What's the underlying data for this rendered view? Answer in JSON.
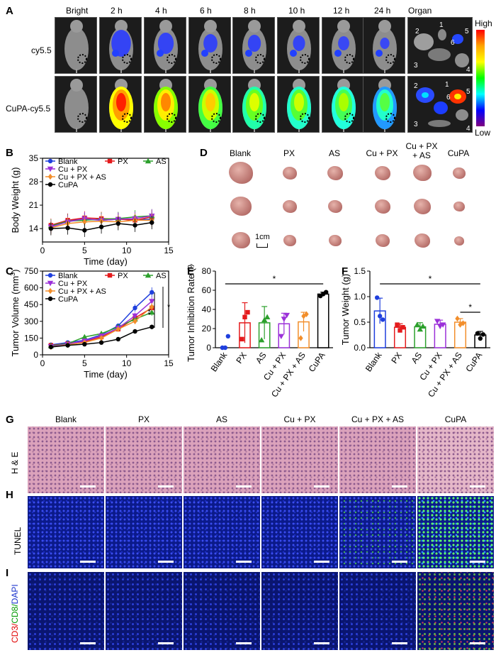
{
  "panel_labels": {
    "A": "A",
    "B": "B",
    "C": "C",
    "D": "D",
    "E": "E",
    "F": "F",
    "G": "G",
    "H": "H",
    "I": "I"
  },
  "panelA": {
    "time_labels": [
      "Bright",
      "2 h",
      "4 h",
      "6 h",
      "8 h",
      "10 h",
      "12 h",
      "24 h"
    ],
    "organ_label": "Organ",
    "row_labels": [
      "cy5.5",
      "CuPA-cy5.5"
    ],
    "colorbar": {
      "high": "High",
      "low": "Low",
      "colors": [
        "#ff0000",
        "#ffa500",
        "#ffff00",
        "#00ff00",
        "#00ffff",
        "#0000ff",
        "#800080"
      ]
    },
    "organ_numbers": [
      "1",
      "2",
      "3",
      "4",
      "5",
      "6"
    ]
  },
  "panelD": {
    "groups": [
      "Blank",
      "PX",
      "AS",
      "Cu + PX",
      "Cu + PX\n+ AS",
      "CuPA"
    ],
    "scale_label": "1cm"
  },
  "panelG": {
    "groups": [
      "Blank",
      "PX",
      "AS",
      "Cu + PX",
      "Cu + PX + AS",
      "CuPA"
    ],
    "row_labels": {
      "he": "H & E",
      "tunel": "TUNEL",
      "cd_red": "CD3/",
      "cd_green": "CD8/",
      "cd_blue": "DAPI"
    }
  },
  "chart_data": [
    {
      "id": "B",
      "type": "line",
      "title": "",
      "xlabel": "Time (day)",
      "ylabel": "Body Weight (g)",
      "xlim": [
        0,
        15
      ],
      "ylim": [
        10,
        35
      ],
      "xticks": [
        0,
        5,
        10,
        15
      ],
      "yticks": [
        14,
        21,
        28,
        35
      ],
      "x": [
        1,
        3,
        5,
        7,
        9,
        11,
        13
      ],
      "series": [
        {
          "name": "Blank",
          "color": "#1f3fdd",
          "marker": "circle",
          "values": [
            14.5,
            16.5,
            16.8,
            16.5,
            16.8,
            16.6,
            16.8
          ]
        },
        {
          "name": "PX",
          "color": "#e41a1c",
          "marker": "square",
          "values": [
            15.0,
            16.5,
            17.2,
            17.0,
            16.8,
            16.5,
            17.5
          ]
        },
        {
          "name": "AS",
          "color": "#2ca02c",
          "marker": "triangle",
          "values": [
            14.8,
            16.2,
            16.5,
            16.8,
            17.0,
            17.5,
            17.8
          ]
        },
        {
          "name": "Cu + PX",
          "color": "#9b30d9",
          "marker": "triangle-down",
          "values": [
            14.5,
            16.0,
            17.0,
            16.5,
            16.8,
            17.0,
            17.8
          ]
        },
        {
          "name": "Cu + PX + AS",
          "color": "#f28e2b",
          "marker": "diamond",
          "values": [
            14.2,
            15.5,
            16.0,
            16.2,
            16.0,
            16.5,
            16.5
          ]
        },
        {
          "name": "CuPA",
          "color": "#000000",
          "marker": "circle",
          "values": [
            14.0,
            14.2,
            13.5,
            14.5,
            15.5,
            15.0,
            15.8
          ]
        }
      ]
    },
    {
      "id": "C",
      "type": "line",
      "title": "",
      "xlabel": "Time (day)",
      "ylabel": "Tumor Volume (mm",
      "ylabel_sup": "3",
      "ylabel_end": ")",
      "xlim": [
        0,
        15
      ],
      "ylim": [
        0,
        750
      ],
      "xticks": [
        0,
        5,
        10,
        15
      ],
      "yticks": [
        0,
        150,
        300,
        450,
        600,
        750
      ],
      "x": [
        1,
        3,
        5,
        7,
        9,
        11,
        13
      ],
      "series": [
        {
          "name": "Blank",
          "color": "#1f3fdd",
          "marker": "circle",
          "values": [
            90,
            110,
            130,
            180,
            260,
            420,
            560
          ]
        },
        {
          "name": "PX",
          "color": "#e41a1c",
          "marker": "square",
          "values": [
            85,
            100,
            120,
            160,
            230,
            330,
            420
          ]
        },
        {
          "name": "AS",
          "color": "#2ca02c",
          "marker": "triangle",
          "values": [
            80,
            100,
            160,
            190,
            250,
            320,
            380
          ]
        },
        {
          "name": "Cu + PX",
          "color": "#9b30d9",
          "marker": "triangle-down",
          "values": [
            75,
            95,
            125,
            170,
            240,
            350,
            480
          ]
        },
        {
          "name": "Cu + PX + AS",
          "color": "#f28e2b",
          "marker": "diamond",
          "values": [
            70,
            90,
            110,
            150,
            230,
            300,
            430
          ]
        },
        {
          "name": "CuPA",
          "color": "#000000",
          "marker": "circle",
          "values": [
            70,
            85,
            95,
            110,
            140,
            210,
            250
          ]
        }
      ],
      "significance": [
        "**",
        "*"
      ]
    },
    {
      "id": "E",
      "type": "bar",
      "title": "",
      "xlabel": "",
      "ylabel": "Tumor Inhibition Rate (%)",
      "ylim": [
        0,
        80
      ],
      "yticks": [
        0,
        20,
        40,
        60,
        80
      ],
      "categories": [
        "Blank",
        "PX",
        "AS",
        "Cu + PX",
        "Cu + PX + AS",
        "CuPA"
      ],
      "colors": [
        "#1f3fdd",
        "#e41a1c",
        "#2ca02c",
        "#9b30d9",
        "#f28e2b",
        "#000000"
      ],
      "values": [
        0,
        26,
        26,
        25,
        27,
        56
      ],
      "errors": [
        0,
        21,
        17,
        11,
        10,
        2
      ],
      "points": [
        [
          0,
          0,
          12
        ],
        [
          9,
          32,
          37
        ],
        [
          8,
          29,
          32
        ],
        [
          12,
          30,
          34
        ],
        [
          10,
          33,
          35
        ],
        [
          54,
          56,
          58
        ]
      ],
      "significance": "*"
    },
    {
      "id": "F",
      "type": "bar",
      "title": "",
      "xlabel": "",
      "ylabel": "Tumor Weight (g)",
      "ylim": [
        0,
        1.5
      ],
      "yticks": [
        0.0,
        0.5,
        1.0,
        1.5
      ],
      "categories": [
        "Blank",
        "PX",
        "AS",
        "Cu + PX",
        "Cu + PX + AS",
        "CuPA"
      ],
      "colors": [
        "#1f3fdd",
        "#e41a1c",
        "#2ca02c",
        "#9b30d9",
        "#f28e2b",
        "#000000"
      ],
      "values": [
        0.72,
        0.4,
        0.41,
        0.46,
        0.5,
        0.25
      ],
      "errors": [
        0.25,
        0.07,
        0.08,
        0.08,
        0.07,
        0.07
      ],
      "points": [
        [
          0.98,
          0.62,
          0.55
        ],
        [
          0.45,
          0.34,
          0.4
        ],
        [
          0.45,
          0.36,
          0.42
        ],
        [
          0.52,
          0.42,
          0.45
        ],
        [
          0.57,
          0.45,
          0.48
        ],
        [
          0.28,
          0.18,
          0.26
        ]
      ],
      "significance": [
        "*",
        "*"
      ]
    }
  ]
}
